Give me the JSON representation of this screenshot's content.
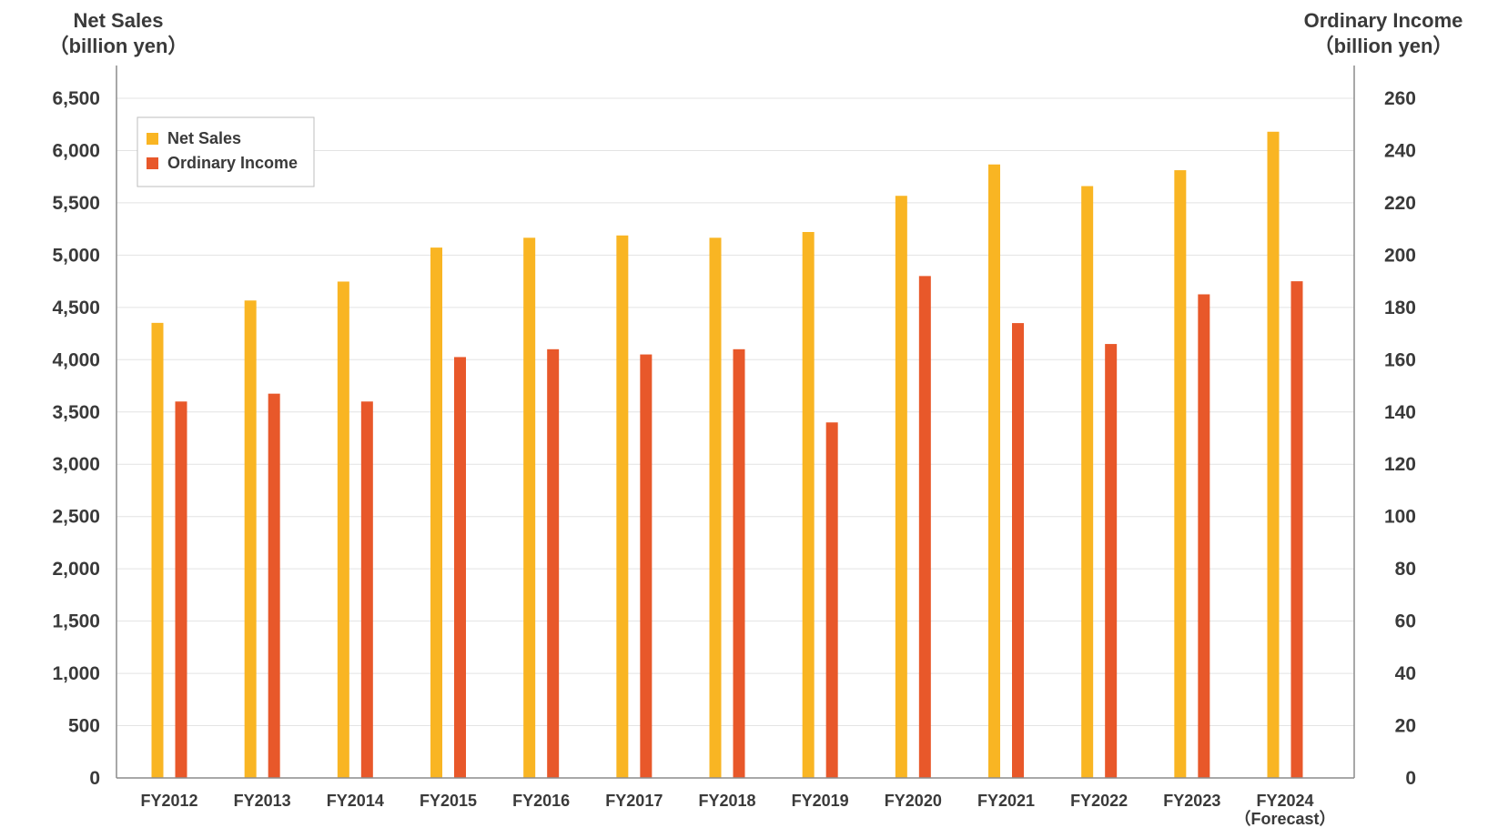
{
  "chart_data": {
    "type": "bar",
    "left_axis": {
      "title_line1": "Net Sales",
      "title_line2": "（billion yen）",
      "ylim": [
        0,
        6500
      ],
      "ticks": [
        0,
        500,
        1000,
        1500,
        2000,
        2500,
        3000,
        3500,
        4000,
        4500,
        5000,
        5500,
        6000,
        6500
      ],
      "tick_labels": [
        "0",
        "500",
        "1,000",
        "1,500",
        "2,000",
        "2,500",
        "3,000",
        "3,500",
        "4,000",
        "4,500",
        "5,000",
        "5,500",
        "6,000",
        "6,500"
      ]
    },
    "right_axis": {
      "title_line1": "Ordinary Income",
      "title_line2": "（billion yen）",
      "ylim": [
        0,
        260
      ],
      "ticks": [
        0,
        20,
        40,
        60,
        80,
        100,
        120,
        140,
        160,
        180,
        200,
        220,
        240,
        260
      ],
      "tick_labels": [
        "0",
        "20",
        "40",
        "60",
        "80",
        "100",
        "120",
        "140",
        "160",
        "180",
        "200",
        "220",
        "240",
        "260"
      ]
    },
    "categories": [
      "FY2012",
      "FY2013",
      "FY2014",
      "FY2015",
      "FY2016",
      "FY2017",
      "FY2018",
      "FY2019",
      "FY2020",
      "FY2021",
      "FY2022",
      "FY2023",
      "FY2024"
    ],
    "category_sublabels": [
      "",
      "",
      "",
      "",
      "",
      "",
      "",
      "",
      "",
      "",
      "",
      "",
      "（Forecast）"
    ],
    "series": [
      {
        "name": "Net Sales",
        "axis": "left",
        "color": "#F9B523",
        "values": [
          4352,
          4566,
          4747,
          5072,
          5166,
          5188,
          5166,
          5221,
          5567,
          5867,
          5660,
          5812,
          6180
        ]
      },
      {
        "name": "Ordinary Income",
        "axis": "right",
        "color": "#E8582A",
        "values": [
          144,
          147,
          144,
          161,
          164,
          162,
          164,
          136,
          192,
          174,
          166,
          185,
          190
        ]
      }
    ],
    "legend_position": "top-left",
    "grid": true
  }
}
